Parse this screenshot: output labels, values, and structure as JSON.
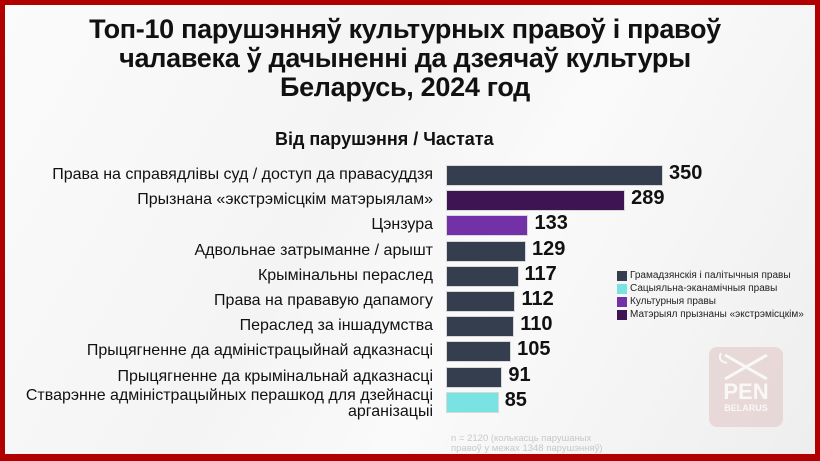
{
  "title_lines": [
    "Топ-10 парушэнняў культурных правоў і правоў",
    "чалавека ў дачыненні да дзеячаў культуры",
    "Беларусь, 2024 год"
  ],
  "subtitle": "Від парушэння  /  Частата",
  "colors": {
    "civil_political": "#353e4f",
    "socio_economic": "#79e3e3",
    "cultural": "#7331a8",
    "extremist": "#3e1552"
  },
  "legend": [
    {
      "label": "Грамадзянскія і палітычныя правы",
      "color": "#353e4f"
    },
    {
      "label": "Сацыяльна-эканамічныя правы",
      "color": "#79e3e3"
    },
    {
      "label": "Культурныя  правы",
      "color": "#7331a8"
    },
    {
      "label": "Матэрыял прызнаны «экстрэмісцкім»",
      "color": "#3e1552"
    }
  ],
  "note_lines": [
    "n = 2120 (колькасць парушаных",
    "правоў у межах 1348 парушэнняў)"
  ],
  "logo": {
    "text": "PEN",
    "subtext": "BELARUS"
  },
  "chart_data": {
    "type": "bar",
    "orientation": "horizontal",
    "title": "Топ-10 парушэнняў культурных правоў і правоў чалавека ў дачыненні да дзеячаў культуры Беларусь, 2024 год",
    "xlabel": "Частата",
    "ylabel": "Від парушэння",
    "categories": [
      "Права на справядлівы суд / доступ да правасуддзя",
      "Прызнана «экстрэмісцкім матэрыялам»",
      "Цэнзура",
      "Адвольнае затрыманне / арышт",
      "Крымінальны пераслед",
      "Права на прававую дапамогу",
      "Пераслед за іншадумства",
      "Прыцягненне да адміністрацыйнай адказнасці",
      "Прыцягненне да крымінальнай адказнасці",
      "Стварэнне адміністрацыйных перашкод для дзейнасці арганізацыі"
    ],
    "values": [
      350,
      289,
      133,
      129,
      117,
      112,
      110,
      105,
      91,
      85
    ],
    "series_category": [
      "Грамадзянскія і палітычныя правы",
      "Матэрыял прызнаны «экстрэмісцкім»",
      "Культурныя  правы",
      "Грамадзянскія і палітычныя правы",
      "Грамадзянскія і палітычныя правы",
      "Грамадзянскія і палітычныя правы",
      "Грамадзянскія і палітычныя правы",
      "Грамадзянскія і палітычныя правы",
      "Грамадзянскія і палітычныя правы",
      "Сацыяльна-эканамічныя правы"
    ],
    "bar_colors": [
      "#353e4f",
      "#3e1552",
      "#7331a8",
      "#353e4f",
      "#353e4f",
      "#353e4f",
      "#353e4f",
      "#353e4f",
      "#353e4f",
      "#79e3e3"
    ],
    "grid": false,
    "legend_position": "right",
    "annotation": "n = 2120 (колькасць парушаных правоў у межах 1348 парушэнняў)"
  }
}
